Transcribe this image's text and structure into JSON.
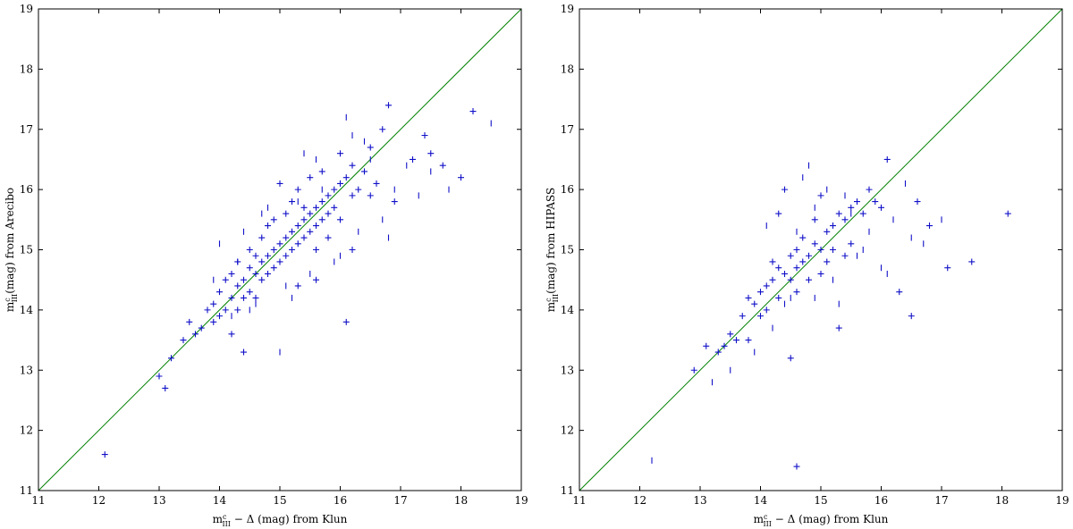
{
  "colors": {
    "points": "#1010c8",
    "identity_line": "#008000",
    "axes": "#000000",
    "background": "#ffffff"
  },
  "chart_data": [
    {
      "type": "scatter",
      "title": "",
      "xlabel_parts": [
        "m",
        "III",
        "c",
        " − Δ (mag) from Klun"
      ],
      "ylabel_parts": [
        "m",
        "III",
        "c",
        "(mag) from Arecibo"
      ],
      "xlim": [
        11,
        19
      ],
      "ylim": [
        11,
        19
      ],
      "xticks": [
        "11",
        "12",
        "13",
        "14",
        "15",
        "16",
        "17",
        "18",
        "19"
      ],
      "yticks": [
        "11",
        "12",
        "13",
        "14",
        "15",
        "16",
        "17",
        "18",
        "19"
      ],
      "grid": false,
      "identity_line": [
        [
          11,
          11
        ],
        [
          19,
          19
        ]
      ],
      "series": [
        {
          "marker": "+",
          "points": [
            [
              12.1,
              11.6
            ],
            [
              13.0,
              12.9
            ],
            [
              13.1,
              12.7
            ],
            [
              13.2,
              13.2
            ],
            [
              13.4,
              13.5
            ],
            [
              13.5,
              13.8
            ],
            [
              13.6,
              13.6
            ],
            [
              13.7,
              13.7
            ],
            [
              13.8,
              14.0
            ],
            [
              13.9,
              14.1
            ],
            [
              13.9,
              13.8
            ],
            [
              14.0,
              14.3
            ],
            [
              14.0,
              13.9
            ],
            [
              14.1,
              14.0
            ],
            [
              14.1,
              14.5
            ],
            [
              14.2,
              14.2
            ],
            [
              14.2,
              14.6
            ],
            [
              14.3,
              14.4
            ],
            [
              14.3,
              14.0
            ],
            [
              14.3,
              14.8
            ],
            [
              14.4,
              14.5
            ],
            [
              14.4,
              14.2
            ],
            [
              14.5,
              14.7
            ],
            [
              14.5,
              14.3
            ],
            [
              14.5,
              15.0
            ],
            [
              14.6,
              14.6
            ],
            [
              14.6,
              14.9
            ],
            [
              14.6,
              14.2
            ],
            [
              14.7,
              14.8
            ],
            [
              14.7,
              15.2
            ],
            [
              14.7,
              14.5
            ],
            [
              14.8,
              14.9
            ],
            [
              14.8,
              15.4
            ],
            [
              14.8,
              14.6
            ],
            [
              14.9,
              15.0
            ],
            [
              14.9,
              14.7
            ],
            [
              14.9,
              15.5
            ],
            [
              15.0,
              15.1
            ],
            [
              15.0,
              14.8
            ],
            [
              15.0,
              16.1
            ],
            [
              15.1,
              15.2
            ],
            [
              15.1,
              14.9
            ],
            [
              15.1,
              15.6
            ],
            [
              15.2,
              15.3
            ],
            [
              15.2,
              15.0
            ],
            [
              15.2,
              15.8
            ],
            [
              15.3,
              15.4
            ],
            [
              15.3,
              15.1
            ],
            [
              15.3,
              16.0
            ],
            [
              15.4,
              15.5
            ],
            [
              15.4,
              15.2
            ],
            [
              15.4,
              15.7
            ],
            [
              15.5,
              15.6
            ],
            [
              15.5,
              15.3
            ],
            [
              15.5,
              16.2
            ],
            [
              15.6,
              15.7
            ],
            [
              15.6,
              15.4
            ],
            [
              15.6,
              15.0
            ],
            [
              15.7,
              15.8
            ],
            [
              15.7,
              15.5
            ],
            [
              15.7,
              16.3
            ],
            [
              15.8,
              15.9
            ],
            [
              15.8,
              15.6
            ],
            [
              15.8,
              15.2
            ],
            [
              15.9,
              16.0
            ],
            [
              15.9,
              15.7
            ],
            [
              16.0,
              16.1
            ],
            [
              16.0,
              15.5
            ],
            [
              16.0,
              16.6
            ],
            [
              16.1,
              16.2
            ],
            [
              16.1,
              13.8
            ],
            [
              16.2,
              16.4
            ],
            [
              16.2,
              15.9
            ],
            [
              16.3,
              16.0
            ],
            [
              16.4,
              16.3
            ],
            [
              16.5,
              16.7
            ],
            [
              16.6,
              16.1
            ],
            [
              16.7,
              17.0
            ],
            [
              16.8,
              17.4
            ],
            [
              16.9,
              15.8
            ],
            [
              17.2,
              16.5
            ],
            [
              17.4,
              16.9
            ],
            [
              17.5,
              16.6
            ],
            [
              17.7,
              16.4
            ],
            [
              18.0,
              16.2
            ],
            [
              18.2,
              17.3
            ],
            [
              14.4,
              13.3
            ],
            [
              14.2,
              13.6
            ],
            [
              15.3,
              14.4
            ],
            [
              15.6,
              14.5
            ],
            [
              16.5,
              15.9
            ],
            [
              16.2,
              15.0
            ]
          ]
        },
        {
          "marker": "|",
          "points": [
            [
              14.0,
              15.1
            ],
            [
              14.2,
              13.9
            ],
            [
              14.4,
              15.3
            ],
            [
              14.6,
              14.1
            ],
            [
              14.8,
              15.7
            ],
            [
              15.0,
              13.3
            ],
            [
              15.1,
              14.4
            ],
            [
              15.3,
              15.8
            ],
            [
              15.5,
              14.6
            ],
            [
              15.7,
              16.0
            ],
            [
              15.9,
              14.8
            ],
            [
              16.1,
              17.2
            ],
            [
              16.3,
              15.3
            ],
            [
              16.5,
              16.5
            ],
            [
              16.7,
              15.5
            ],
            [
              16.9,
              16.0
            ],
            [
              17.1,
              16.4
            ],
            [
              17.3,
              15.9
            ],
            [
              17.5,
              16.3
            ],
            [
              17.8,
              16.0
            ],
            [
              18.5,
              17.1
            ],
            [
              14.3,
              14.8
            ],
            [
              14.7,
              15.6
            ],
            [
              15.2,
              14.2
            ],
            [
              15.6,
              16.5
            ],
            [
              16.0,
              14.9
            ],
            [
              16.4,
              16.8
            ],
            [
              16.8,
              15.2
            ],
            [
              13.9,
              14.5
            ],
            [
              14.5,
              14.0
            ],
            [
              15.4,
              16.6
            ],
            [
              16.2,
              16.9
            ]
          ]
        }
      ]
    },
    {
      "type": "scatter",
      "title": "",
      "xlabel_parts": [
        "m",
        "III",
        "c",
        " − Δ (mag) from Klun"
      ],
      "ylabel_parts": [
        "m",
        "III",
        "c",
        "(mag) from HIPASS"
      ],
      "xlim": [
        11,
        19
      ],
      "ylim": [
        11,
        19
      ],
      "xticks": [
        "11",
        "12",
        "13",
        "14",
        "15",
        "16",
        "17",
        "18",
        "19"
      ],
      "yticks": [
        "11",
        "12",
        "13",
        "14",
        "15",
        "16",
        "17",
        "18",
        "19"
      ],
      "grid": false,
      "identity_line": [
        [
          11,
          11
        ],
        [
          19,
          19
        ]
      ],
      "series": [
        {
          "marker": "+",
          "points": [
            [
              12.9,
              13.0
            ],
            [
              13.1,
              13.4
            ],
            [
              13.3,
              13.3
            ],
            [
              13.4,
              13.4
            ],
            [
              13.5,
              13.6
            ],
            [
              13.6,
              13.5
            ],
            [
              13.7,
              13.9
            ],
            [
              13.8,
              14.2
            ],
            [
              13.8,
              13.5
            ],
            [
              13.9,
              14.1
            ],
            [
              14.0,
              14.3
            ],
            [
              14.0,
              13.9
            ],
            [
              14.1,
              14.4
            ],
            [
              14.1,
              14.0
            ],
            [
              14.2,
              14.5
            ],
            [
              14.2,
              14.8
            ],
            [
              14.3,
              14.2
            ],
            [
              14.3,
              14.7
            ],
            [
              14.4,
              14.6
            ],
            [
              14.4,
              16.0
            ],
            [
              14.5,
              14.5
            ],
            [
              14.5,
              14.9
            ],
            [
              14.5,
              13.2
            ],
            [
              14.6,
              14.7
            ],
            [
              14.6,
              15.0
            ],
            [
              14.6,
              14.3
            ],
            [
              14.6,
              11.4
            ],
            [
              14.7,
              14.8
            ],
            [
              14.7,
              15.2
            ],
            [
              14.8,
              14.9
            ],
            [
              14.8,
              14.5
            ],
            [
              14.9,
              15.1
            ],
            [
              14.9,
              15.5
            ],
            [
              15.0,
              15.0
            ],
            [
              15.0,
              14.6
            ],
            [
              15.1,
              15.3
            ],
            [
              15.1,
              14.8
            ],
            [
              15.2,
              15.4
            ],
            [
              15.2,
              15.0
            ],
            [
              15.3,
              15.6
            ],
            [
              15.3,
              13.7
            ],
            [
              15.4,
              15.5
            ],
            [
              15.5,
              15.7
            ],
            [
              15.5,
              15.1
            ],
            [
              15.6,
              15.8
            ],
            [
              15.7,
              15.6
            ],
            [
              15.8,
              16.0
            ],
            [
              15.9,
              15.8
            ],
            [
              16.0,
              15.7
            ],
            [
              16.1,
              16.5
            ],
            [
              16.3,
              14.3
            ],
            [
              16.5,
              13.9
            ],
            [
              16.6,
              15.8
            ],
            [
              16.8,
              15.4
            ],
            [
              17.1,
              14.7
            ],
            [
              17.5,
              14.8
            ],
            [
              18.1,
              15.6
            ],
            [
              15.4,
              14.9
            ],
            [
              15.0,
              15.9
            ],
            [
              14.3,
              15.6
            ]
          ]
        },
        {
          "marker": "|",
          "points": [
            [
              12.2,
              11.5
            ],
            [
              13.2,
              12.8
            ],
            [
              13.5,
              13.0
            ],
            [
              13.9,
              13.3
            ],
            [
              14.2,
              13.7
            ],
            [
              14.4,
              14.1
            ],
            [
              14.6,
              15.3
            ],
            [
              14.8,
              16.4
            ],
            [
              14.9,
              14.2
            ],
            [
              15.1,
              16.0
            ],
            [
              15.2,
              14.5
            ],
            [
              15.4,
              15.9
            ],
            [
              15.6,
              14.9
            ],
            [
              15.8,
              15.3
            ],
            [
              16.0,
              14.7
            ],
            [
              16.2,
              15.5
            ],
            [
              16.4,
              16.1
            ],
            [
              16.5,
              15.2
            ],
            [
              16.7,
              15.1
            ],
            [
              17.0,
              15.5
            ],
            [
              14.1,
              15.4
            ],
            [
              14.5,
              14.2
            ],
            [
              14.9,
              15.7
            ],
            [
              15.3,
              14.1
            ],
            [
              15.7,
              15.0
            ],
            [
              16.1,
              14.6
            ],
            [
              14.7,
              16.2
            ],
            [
              15.5,
              15.6
            ]
          ]
        }
      ]
    }
  ]
}
